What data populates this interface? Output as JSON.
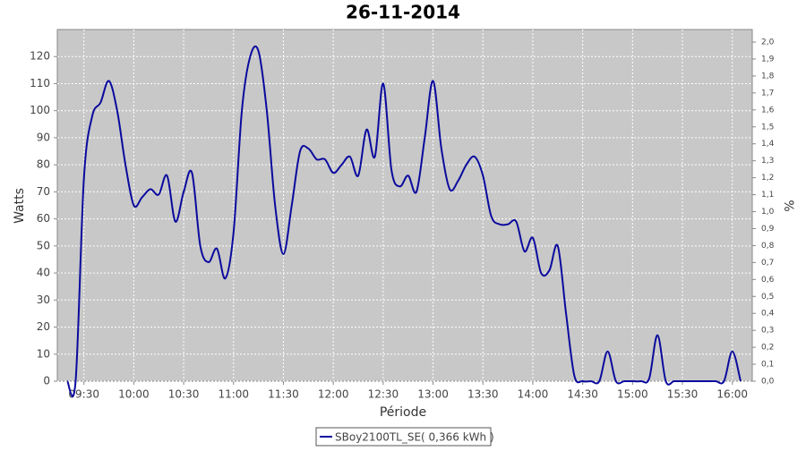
{
  "chart_data": {
    "type": "line",
    "title": "26-11-2014",
    "x_label": "Période",
    "y_label": "Watts",
    "y2_label": "%",
    "x": [
      "09:20",
      "09:25",
      "09:30",
      "09:35",
      "09:40",
      "09:45",
      "09:50",
      "09:55",
      "10:00",
      "10:05",
      "10:10",
      "10:15",
      "10:20",
      "10:25",
      "10:30",
      "10:35",
      "10:40",
      "10:45",
      "10:50",
      "10:55",
      "11:00",
      "11:05",
      "11:10",
      "11:15",
      "11:20",
      "11:25",
      "11:30",
      "11:35",
      "11:40",
      "11:45",
      "11:50",
      "11:55",
      "12:00",
      "12:05",
      "12:10",
      "12:15",
      "12:20",
      "12:25",
      "12:30",
      "12:35",
      "12:40",
      "12:45",
      "12:50",
      "12:55",
      "13:00",
      "13:05",
      "13:10",
      "13:15",
      "13:20",
      "13:25",
      "13:30",
      "13:35",
      "13:40",
      "13:45",
      "13:50",
      "13:55",
      "14:00",
      "14:05",
      "14:10",
      "14:15",
      "14:20",
      "14:25",
      "14:30",
      "14:35",
      "14:40",
      "14:45",
      "14:50",
      "14:55",
      "15:00",
      "15:05",
      "15:10",
      "15:15",
      "15:20",
      "15:25",
      "15:30",
      "15:35",
      "15:40",
      "15:45",
      "15:50",
      "15:55",
      "16:00",
      "16:05"
    ],
    "series": [
      {
        "name": "SBoy2100TL_SE( 0,366 kWh )",
        "color": "#0a0a9e",
        "values": [
          0,
          0,
          75,
          98,
          103,
          111,
          100,
          80,
          65,
          68,
          71,
          69,
          76,
          59,
          70,
          77,
          50,
          44,
          49,
          38,
          55,
          100,
          120,
          122,
          100,
          65,
          47,
          65,
          85,
          86,
          82,
          82,
          77,
          80,
          83,
          76,
          93,
          83,
          110,
          78,
          72,
          76,
          70,
          90,
          111,
          86,
          71,
          74,
          80,
          83,
          76,
          61,
          58,
          58,
          59,
          48,
          53,
          40,
          41,
          50,
          25,
          2,
          0,
          0,
          0,
          11,
          0,
          0,
          0,
          0,
          1,
          17,
          0,
          0,
          0,
          0,
          0,
          0,
          0,
          0,
          11,
          0
        ]
      }
    ],
    "xlim": [
      "09:14",
      "16:12"
    ],
    "xticks": [
      "09:30",
      "10:00",
      "10:30",
      "11:00",
      "11:30",
      "12:00",
      "12:30",
      "13:00",
      "13:30",
      "14:00",
      "14:30",
      "15:00",
      "15:30",
      "16:00"
    ],
    "ylim": [
      0,
      130
    ],
    "yticks": [
      0,
      10,
      20,
      30,
      40,
      50,
      60,
      70,
      80,
      90,
      100,
      110,
      120
    ],
    "y2lim": [
      0,
      2.074
    ],
    "y2ticks": [
      {
        "value": 0,
        "label": "0,0"
      },
      {
        "value": 0.1,
        "label": "0,1"
      },
      {
        "value": 0.2,
        "label": "0,2"
      },
      {
        "value": 0.3,
        "label": "0,3"
      },
      {
        "value": 0.4,
        "label": "0,4"
      },
      {
        "value": 0.5,
        "label": "0,5"
      },
      {
        "value": 0.6,
        "label": "0,6"
      },
      {
        "value": 0.7,
        "label": "0,7"
      },
      {
        "value": 0.8,
        "label": "0,8"
      },
      {
        "value": 0.9,
        "label": "0,9"
      },
      {
        "value": 1,
        "label": "1,0"
      },
      {
        "value": 1.1,
        "label": "1,1"
      },
      {
        "value": 1.2,
        "label": "1,2"
      },
      {
        "value": 1.3,
        "label": "1,3"
      },
      {
        "value": 1.4,
        "label": "1,4"
      },
      {
        "value": 1.5,
        "label": "1,5"
      },
      {
        "value": 1.6,
        "label": "1,6"
      },
      {
        "value": 1.7,
        "label": "1,7"
      },
      {
        "value": 1.8,
        "label": "1,8"
      },
      {
        "value": 1.9,
        "label": "1,9"
      },
      {
        "value": 2,
        "label": "2,0"
      }
    ],
    "grid": true
  }
}
